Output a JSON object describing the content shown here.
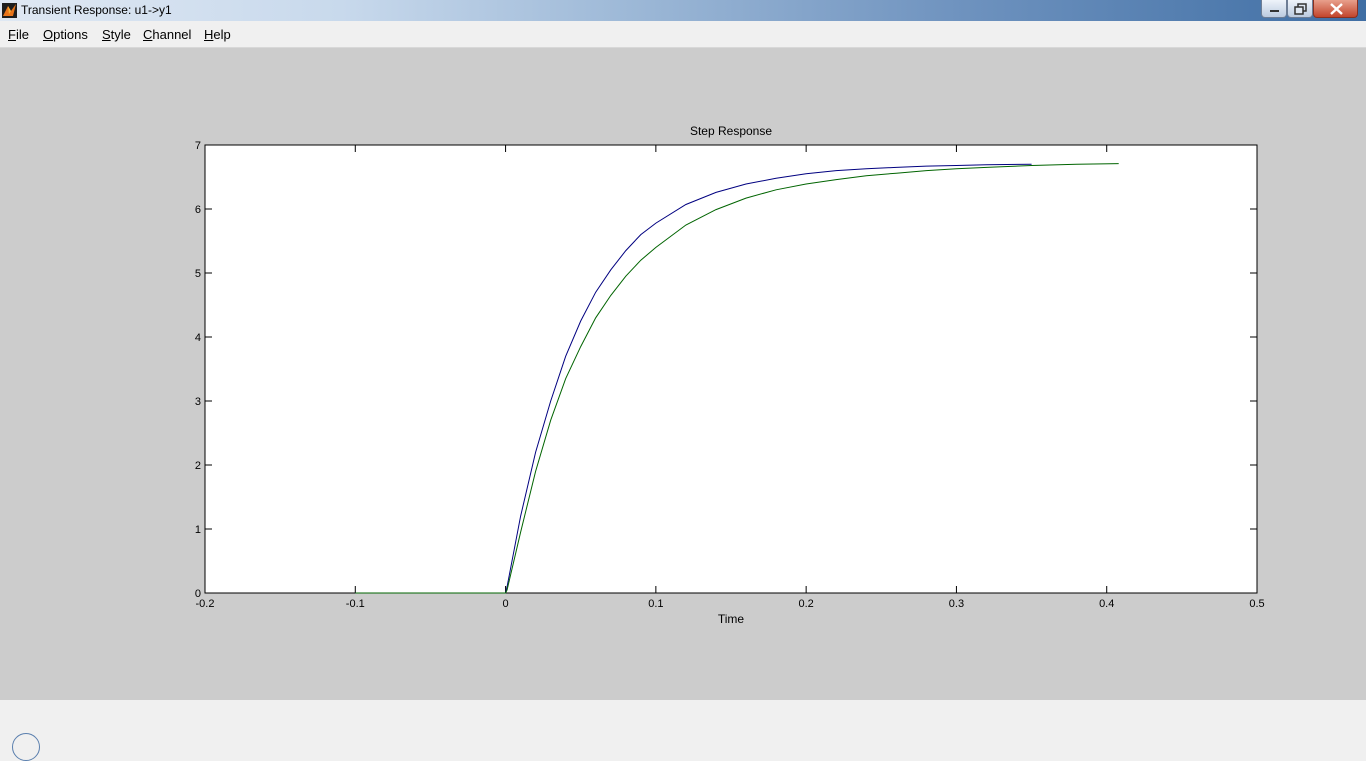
{
  "window": {
    "title": "Transient Response: u1->y1"
  },
  "menu": [
    {
      "key": "F",
      "rest": "ile",
      "name": "file"
    },
    {
      "key": "O",
      "rest": "ptions",
      "name": "options"
    },
    {
      "key": "S",
      "rest": "tyle",
      "name": "style"
    },
    {
      "key": "C",
      "rest": "hannel",
      "name": "channel"
    },
    {
      "key": "H",
      "rest": "elp",
      "name": "help"
    }
  ],
  "colors": {
    "figure_bg": "#cccccc",
    "series_blue": "#000080",
    "series_green": "#006400"
  },
  "chart_data": {
    "type": "line",
    "title": "Step Response",
    "xlabel": "Time",
    "ylabel": "",
    "xlim": [
      -0.2,
      0.5
    ],
    "ylim": [
      0,
      7
    ],
    "xticks": [
      "-0.2",
      "-0.1",
      "0",
      "0.1",
      "0.2",
      "0.3",
      "0.4",
      "0.5"
    ],
    "yticks": [
      "0",
      "1",
      "2",
      "3",
      "4",
      "5",
      "6",
      "7"
    ],
    "grid": false,
    "legend": "none",
    "series": [
      {
        "color": "#000080",
        "x": [
          -0.1,
          0,
          0.001,
          0.01,
          0.02,
          0.03,
          0.04,
          0.05,
          0.06,
          0.07,
          0.08,
          0.09,
          0.1,
          0.12,
          0.14,
          0.16,
          0.18,
          0.2,
          0.22,
          0.24,
          0.26,
          0.28,
          0.3,
          0.32,
          0.35
        ],
        "y": [
          0,
          0,
          0.1,
          1.2,
          2.2,
          3.0,
          3.7,
          4.25,
          4.7,
          5.05,
          5.35,
          5.6,
          5.78,
          6.07,
          6.26,
          6.39,
          6.48,
          6.55,
          6.6,
          6.63,
          6.65,
          6.67,
          6.68,
          6.69,
          6.7
        ]
      },
      {
        "color": "#006400",
        "x": [
          -0.1,
          0,
          0.001,
          0.01,
          0.02,
          0.03,
          0.04,
          0.05,
          0.06,
          0.07,
          0.08,
          0.09,
          0.1,
          0.12,
          0.14,
          0.16,
          0.18,
          0.2,
          0.22,
          0.24,
          0.26,
          0.28,
          0.3,
          0.32,
          0.35,
          0.38,
          0.408
        ],
        "y": [
          0,
          0,
          0.05,
          0.95,
          1.9,
          2.7,
          3.35,
          3.85,
          4.3,
          4.65,
          4.95,
          5.2,
          5.4,
          5.75,
          5.99,
          6.17,
          6.3,
          6.39,
          6.46,
          6.52,
          6.56,
          6.6,
          6.63,
          6.65,
          6.68,
          6.7,
          6.71
        ]
      }
    ]
  }
}
